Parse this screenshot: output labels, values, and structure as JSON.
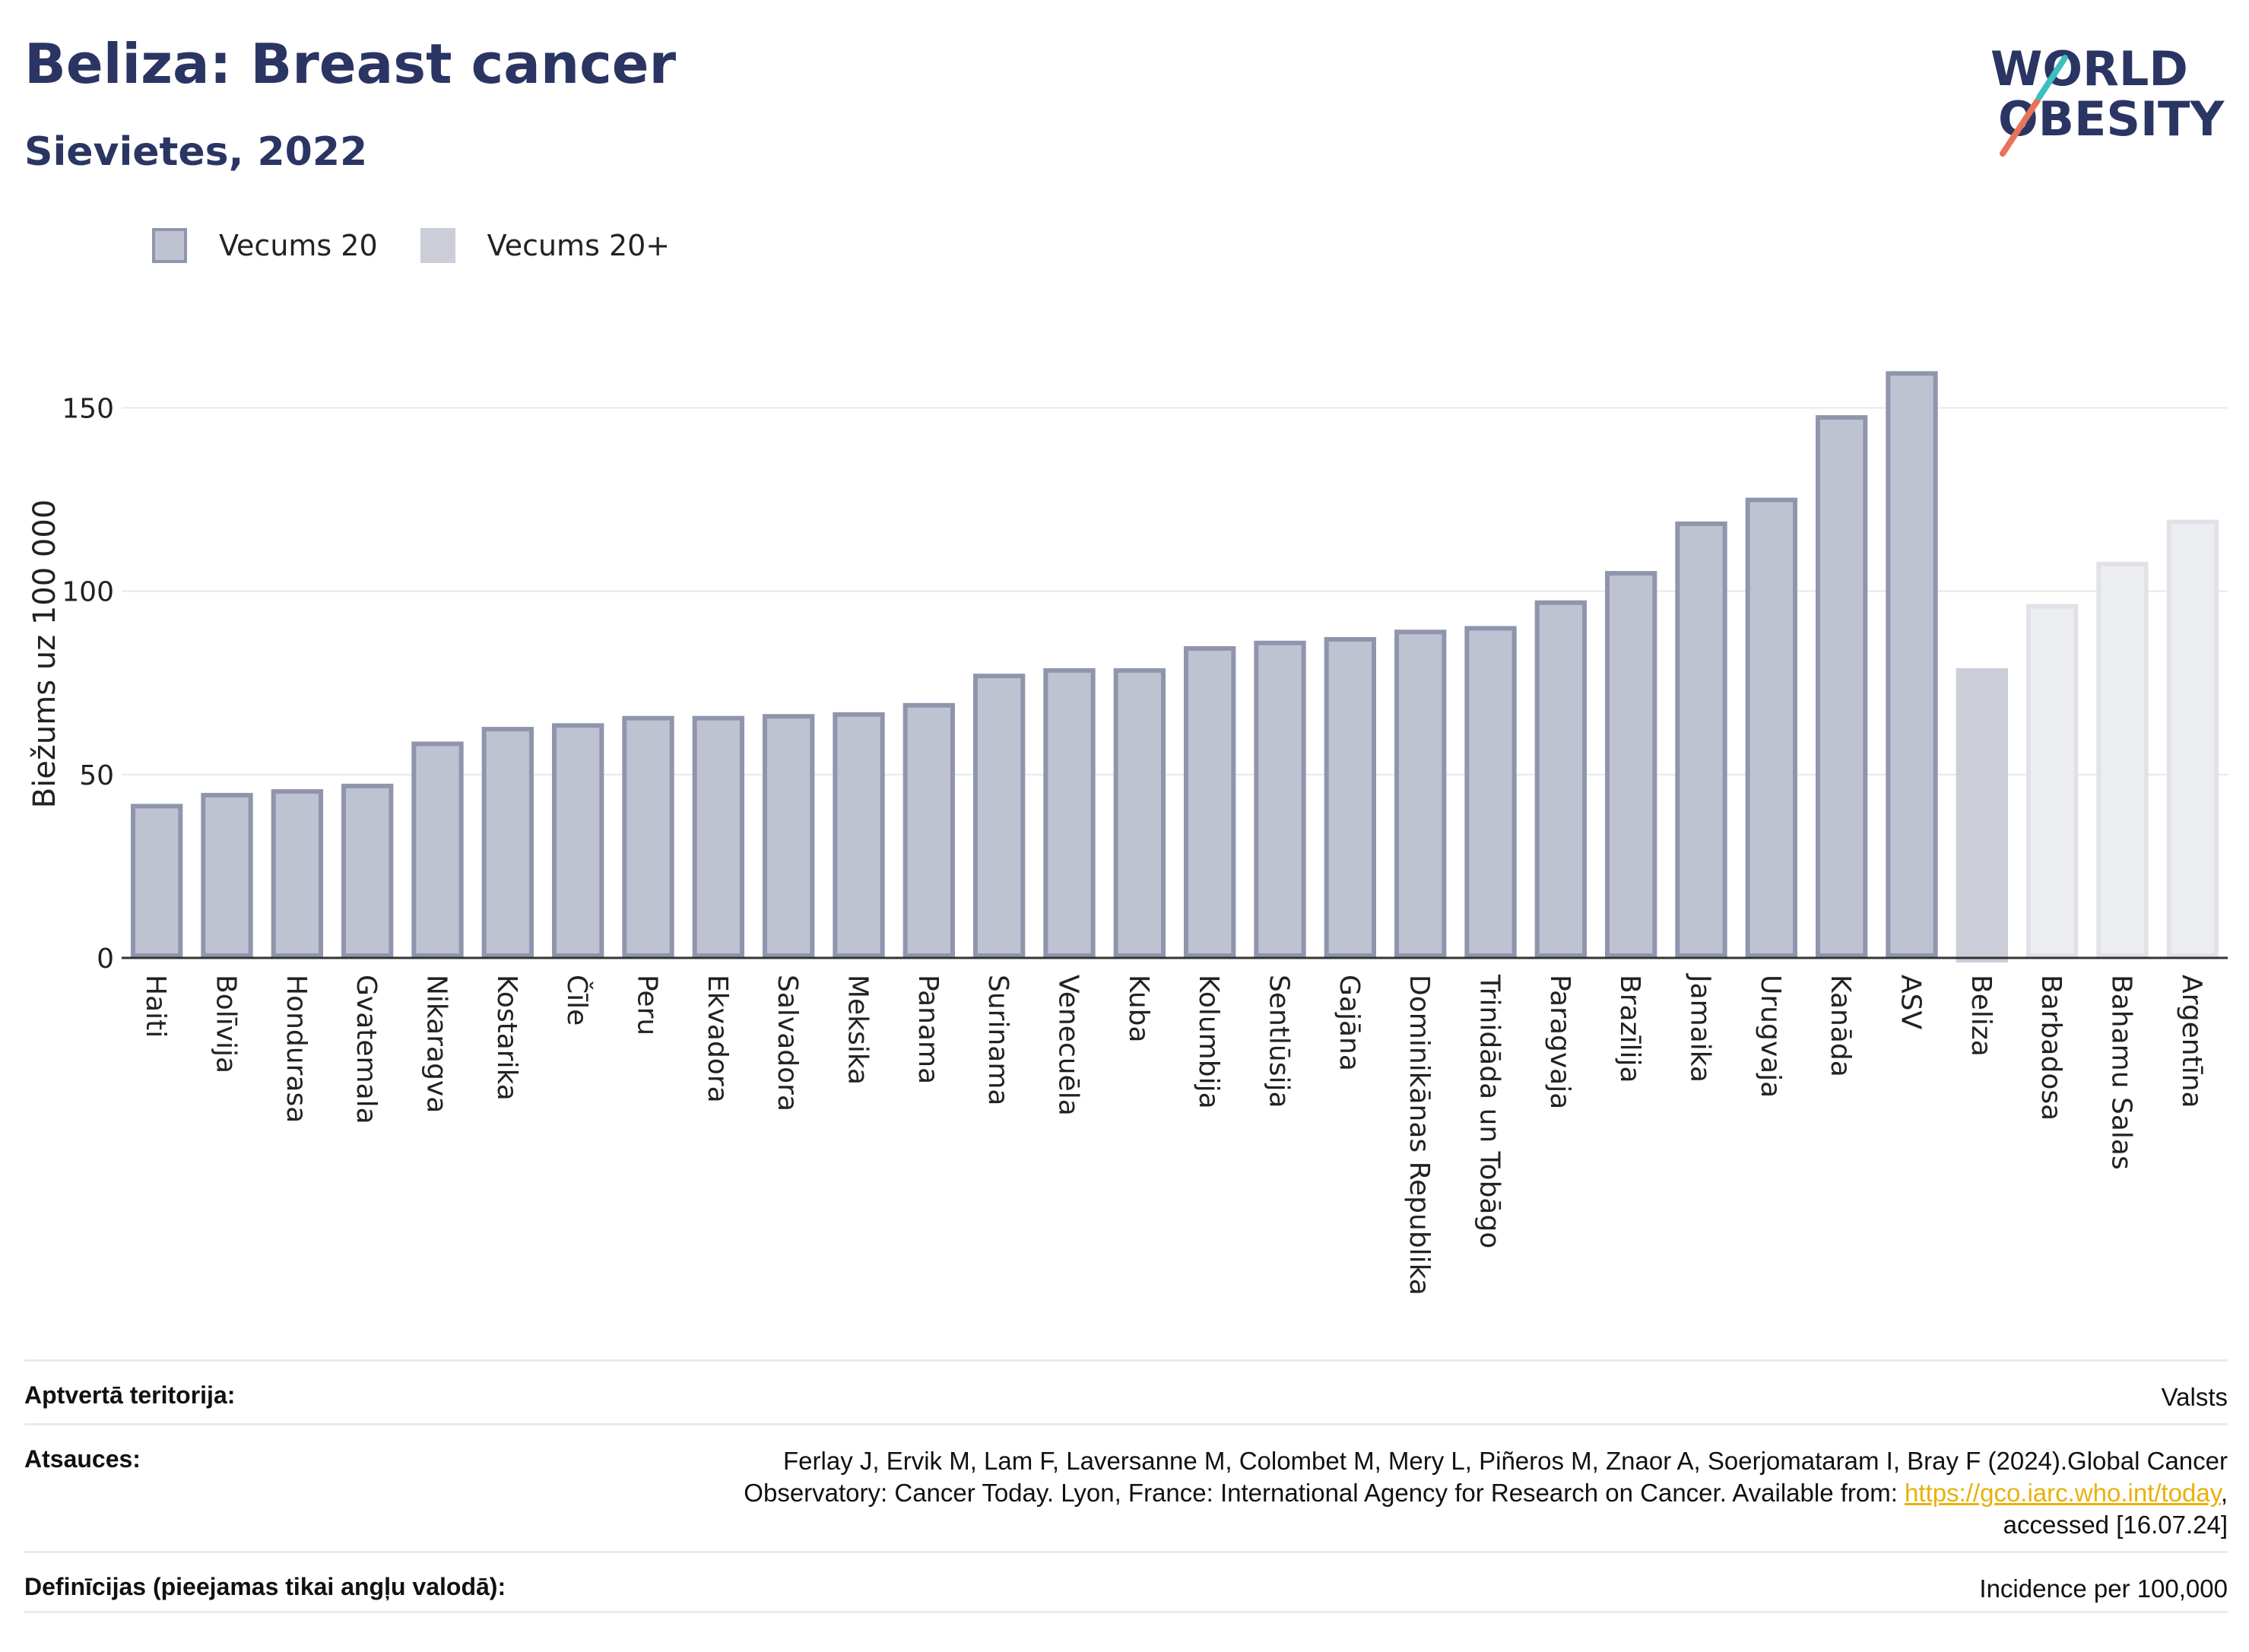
{
  "title": "Beliza: Breast cancer",
  "subtitle": "Sievietes, 2022",
  "logo": {
    "line1": "WORLD",
    "line2": "OBESITY"
  },
  "legend": [
    {
      "label": "Vecums 20"
    },
    {
      "label": "Vecums 20+"
    }
  ],
  "colors": {
    "bar_fill": "#bfc3d1",
    "bar_border": "#8f95ad",
    "highlight_fill": "#cbcdd9",
    "faded_fill": "#eceef2",
    "faded_border": "#e0e2e8",
    "title": "#2b3563",
    "link": "#e8b10d"
  },
  "chart_data": {
    "type": "bar",
    "ylabel": "Biežums uz 100 000",
    "xlabel": "",
    "ylim": [
      0,
      170
    ],
    "yticks": [
      0,
      50,
      100,
      150
    ],
    "grid": true,
    "categories": [
      "Haiti",
      "Bolīvija",
      "Hondurasa",
      "Gvatemala",
      "Nikaragva",
      "Kostarika",
      "Čīle",
      "Peru",
      "Ekvadora",
      "Salvadora",
      "Meksika",
      "Panama",
      "Surinama",
      "Venecuēla",
      "Kuba",
      "Kolumbija",
      "Sentlūsija",
      "Gajāna",
      "Dominikānas Republika",
      "Trinidāda un Tobāgo",
      "Paragvaja",
      "Brazīlija",
      "Jamaika",
      "Urugvaja",
      "Kanāda",
      "ASV",
      "Beliza",
      "Barbadosa",
      "Bahamu Salas",
      "Argentīna"
    ],
    "values": [
      42,
      45,
      46,
      47.5,
      59,
      63,
      64,
      66,
      66,
      66.5,
      67,
      69.5,
      77.5,
      79,
      79,
      85,
      86.5,
      87.5,
      89.5,
      90.5,
      97.5,
      105.5,
      119,
      125.5,
      148,
      160,
      79,
      96.5,
      108,
      119.5
    ],
    "series_group": [
      "Vecums 20",
      "Vecums 20",
      "Vecums 20",
      "Vecums 20",
      "Vecums 20",
      "Vecums 20",
      "Vecums 20",
      "Vecums 20",
      "Vecums 20",
      "Vecums 20",
      "Vecums 20",
      "Vecums 20",
      "Vecums 20",
      "Vecums 20",
      "Vecums 20",
      "Vecums 20",
      "Vecums 20",
      "Vecums 20",
      "Vecums 20",
      "Vecums 20",
      "Vecums 20",
      "Vecums 20",
      "Vecums 20",
      "Vecums 20",
      "Vecums 20",
      "Vecums 20",
      "Vecums 20+",
      "Vecums 20+",
      "Vecums 20+",
      "Vecums 20+"
    ],
    "highlight": "Beliza"
  },
  "footer": {
    "coverage_label": "Aptvertā teritorija:",
    "coverage_value": "Valsts",
    "refs_label": "Atsauces:",
    "refs_line1": "Ferlay J, Ervik M, Lam F, Laversanne M, Colombet M, Mery L, Piñeros M, Znaor A, Soerjomataram I, Bray F (2024).Global Cancer",
    "refs_line2_pre": "Observatory: Cancer Today. Lyon, France: International Agency for Research on Cancer. Available from: ",
    "refs_link": "https://gco.iarc.who.int/today",
    "refs_line2_post": ",",
    "refs_line3": "accessed [16.07.24]",
    "defs_label": "Definīcijas (pieejamas tikai angļu valodā):",
    "defs_value": "Incidence per 100,000"
  }
}
